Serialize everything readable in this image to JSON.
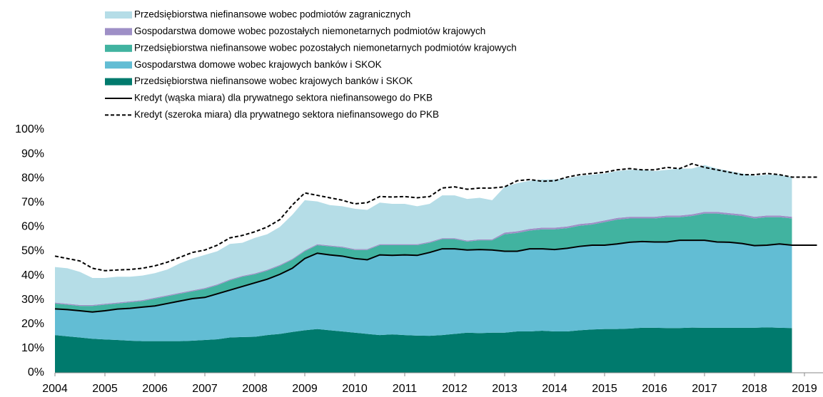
{
  "chart_data": {
    "type": "stacked_area",
    "x": [
      2004,
      2004.25,
      2004.5,
      2004.75,
      2005,
      2005.25,
      2005.5,
      2005.75,
      2006,
      2006.25,
      2006.5,
      2006.75,
      2007,
      2007.25,
      2007.5,
      2007.75,
      2008,
      2008.25,
      2008.5,
      2008.75,
      2009,
      2009.25,
      2009.5,
      2009.75,
      2010,
      2010.25,
      2010.5,
      2010.75,
      2011,
      2011.25,
      2011.5,
      2011.75,
      2012,
      2012.25,
      2012.5,
      2012.75,
      2013,
      2013.25,
      2013.5,
      2013.75,
      2014,
      2014.25,
      2014.5,
      2014.75,
      2015,
      2015.25,
      2015.5,
      2015.75,
      2016,
      2016.25,
      2016.5,
      2016.75,
      2017,
      2017.25,
      2017.5,
      2017.75,
      2018,
      2018.25,
      2018.5,
      2018.75,
      2019,
      2019.25
    ],
    "xlim": [
      2004,
      2019.3
    ],
    "xticks": [
      2004,
      2005,
      2006,
      2007,
      2008,
      2009,
      2010,
      2011,
      2012,
      2013,
      2014,
      2015,
      2016,
      2017,
      2018,
      2019
    ],
    "ylim": [
      0,
      100
    ],
    "yticks": [
      {
        "value": 0,
        "label": "0%"
      },
      {
        "value": 10,
        "label": "10%"
      },
      {
        "value": 20,
        "label": "20%"
      },
      {
        "value": 30,
        "label": "30%"
      },
      {
        "value": 40,
        "label": "40%"
      },
      {
        "value": 50,
        "label": "50%"
      },
      {
        "value": 60,
        "label": "60%"
      },
      {
        "value": 70,
        "label": "70%"
      },
      {
        "value": 80,
        "label": "80%"
      },
      {
        "value": 90,
        "label": "90%"
      },
      {
        "value": 100,
        "label": "100%"
      }
    ],
    "series": [
      {
        "name": "Przedsiębiorstwa niefinansowe wobec podmiotów zagranicznych",
        "kind": "area",
        "color": "#b5dde7",
        "values": [
          14.6,
          14.6,
          13.6,
          11.1,
          10.6,
          10.6,
          10.1,
          10.1,
          10.1,
          10.6,
          12.1,
          13.1,
          13.6,
          13.6,
          14.6,
          13.6,
          14.6,
          14.6,
          15.6,
          18.1,
          20.6,
          17.6,
          16.6,
          16.6,
          16.6,
          16.1,
          17.1,
          16.6,
          16.6,
          15.6,
          15.6,
          17.6,
          17.6,
          17.1,
          17.1,
          16.1,
          18.8,
          19.8,
          19.8,
          19.8,
          19.8,
          19.8,
          19.8,
          19.8,
          19.3,
          19.3,
          19.3,
          19.3,
          18.8,
          18.8,
          19.3,
          18.8,
          19.3,
          17.8,
          17.3,
          16.8,
          16.8,
          16.8,
          16.8,
          16.3,
          null,
          null
        ]
      },
      {
        "name": "Gospodarstwa domowe wobec pozostałych niemonetarnych podmiotów krajowych",
        "kind": "area",
        "color": "#9e8fc6",
        "values": [
          0.4,
          0.4,
          0.4,
          0.4,
          0.4,
          0.4,
          0.4,
          0.4,
          0.4,
          0.4,
          0.4,
          0.4,
          0.4,
          0.4,
          0.4,
          0.4,
          0.4,
          0.4,
          0.4,
          0.4,
          0.4,
          0.4,
          0.4,
          0.4,
          0.4,
          0.4,
          0.4,
          0.4,
          0.4,
          0.4,
          0.4,
          0.4,
          0.4,
          0.4,
          0.4,
          0.4,
          0.7,
          0.7,
          0.7,
          0.7,
          0.7,
          0.7,
          0.7,
          0.7,
          0.7,
          0.7,
          0.7,
          0.7,
          0.7,
          0.7,
          0.7,
          0.7,
          0.7,
          0.7,
          0.7,
          0.7,
          0.7,
          0.7,
          0.7,
          0.7,
          null,
          null
        ]
      },
      {
        "name": "Przedsiębiorstwa niefinansowe wobec pozostałych niemonetarnych podmiotów krajowych",
        "kind": "area",
        "color": "#41b3a0",
        "values": [
          2.2,
          2,
          2,
          2.5,
          2.5,
          2.3,
          2.5,
          2.5,
          3,
          3,
          3,
          3,
          3.5,
          3.5,
          4,
          4,
          3.5,
          3.5,
          3.5,
          3.5,
          3,
          3.3,
          3.5,
          3.5,
          3.5,
          4,
          4,
          4.2,
          4,
          4.2,
          4,
          4,
          4,
          3.5,
          3.8,
          4,
          7,
          7.5,
          7.5,
          8,
          8.3,
          8.3,
          8.5,
          8.5,
          9.5,
          10,
          9.8,
          9.5,
          9.7,
          10.2,
          9.5,
          10,
          11,
          11.7,
          11.3,
          11.3,
          11.2,
          11.5,
          11,
          11,
          null,
          null
        ]
      },
      {
        "name": "Gospodarstwa domowe wobec krajowych banków i SKOK",
        "kind": "area",
        "color": "#62bdd4",
        "values": [
          10.8,
          11,
          11,
          11,
          11.8,
          12.7,
          13.3,
          14,
          14.5,
          15.5,
          16.5,
          17.3,
          17.5,
          18.7,
          19.5,
          20.8,
          22.2,
          23,
          24.5,
          26.2,
          29.5,
          31.2,
          31,
          31,
          30.5,
          30.5,
          33,
          32.5,
          33,
          33,
          34.3,
          35.5,
          35,
          34,
          34.4,
          34,
          33.5,
          33,
          34,
          33.7,
          33.7,
          34.2,
          34.5,
          34.7,
          34.5,
          35,
          35.5,
          35.5,
          35.3,
          35.4,
          36.1,
          35.9,
          36,
          35.3,
          35.2,
          34.7,
          33.8,
          33.8,
          34.5,
          34.1,
          null,
          null
        ]
      },
      {
        "name": "Przedsiębiorstwa niefinansowe wobec krajowych banków i SKOK",
        "kind": "area",
        "color": "#007a6d",
        "values": [
          15.5,
          15,
          14.5,
          14,
          13.7,
          13.5,
          13.2,
          13,
          13,
          13,
          13,
          13.2,
          13.5,
          13.8,
          14.5,
          14.7,
          14.8,
          15.5,
          16,
          16.8,
          17.5,
          18,
          17.5,
          17,
          16.5,
          16,
          15.5,
          15.8,
          15.5,
          15.3,
          15.2,
          15.5,
          16,
          16.5,
          16.3,
          16.5,
          16.5,
          17,
          17,
          17.3,
          17,
          17,
          17.5,
          17.8,
          18,
          18,
          18.2,
          18.5,
          18.5,
          18.4,
          18.4,
          18.6,
          18.5,
          18.5,
          18.5,
          18.5,
          18.5,
          18.7,
          18.5,
          18.4,
          null,
          null
        ]
      },
      {
        "name": "Kredyt (wąska miara) dla prywatnego sektora niefinansowego do PKB",
        "kind": "line",
        "color": "#000000",
        "dashed": false,
        "values": [
          26.3,
          26,
          25.5,
          25,
          25.5,
          26.2,
          26.5,
          27,
          27.5,
          28.5,
          29.5,
          30.5,
          31,
          32.5,
          34,
          35.5,
          37,
          38.5,
          40.5,
          43,
          47,
          49.2,
          48.5,
          48,
          47,
          46.5,
          48.5,
          48.3,
          48.5,
          48.3,
          49.5,
          51,
          51,
          50.5,
          50.7,
          50.5,
          50,
          50,
          51,
          51,
          50.7,
          51.2,
          52,
          52.5,
          52.5,
          53,
          53.7,
          54,
          53.8,
          53.8,
          54.5,
          54.5,
          54.5,
          53.8,
          53.7,
          53.2,
          52.3,
          52.5,
          53,
          52.5,
          52.5,
          52.5
        ]
      },
      {
        "name": "Kredyt (szeroka miara) dla prywatnego sektora niefinansowego do PKB",
        "kind": "line",
        "color": "#000000",
        "dashed": true,
        "values": [
          48,
          47,
          46,
          43,
          42,
          42.3,
          42.5,
          43,
          44,
          45.5,
          47.5,
          49.5,
          50.5,
          52.5,
          55.5,
          56.5,
          58,
          60,
          63,
          69,
          74,
          73,
          72,
          71,
          69.5,
          70,
          72.5,
          72.3,
          72.5,
          72,
          72.5,
          76,
          76.5,
          75.5,
          76,
          76,
          76.5,
          79,
          79.5,
          78.8,
          79,
          80.5,
          81.5,
          82,
          82.5,
          83.5,
          84,
          83.5,
          83.5,
          84.5,
          84,
          86,
          84.5,
          83.5,
          82.5,
          81.5,
          81.5,
          82,
          81.5,
          80.5,
          80.5,
          80.5
        ]
      }
    ]
  }
}
